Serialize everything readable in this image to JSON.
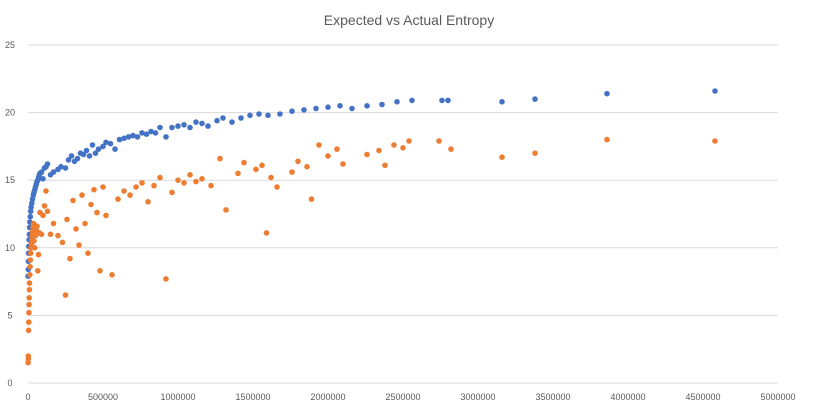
{
  "chart_data": {
    "type": "scatter",
    "title": "Expected vs Actual Entropy",
    "xlabel": "",
    "ylabel": "",
    "xlim": [
      0,
      5000000
    ],
    "ylim": [
      0,
      25
    ],
    "x_ticks": [
      "0",
      "500000",
      "1000000",
      "1500000",
      "2000000",
      "2500000",
      "3000000",
      "3500000",
      "4000000",
      "4500000",
      "5000000"
    ],
    "y_ticks": [
      "0",
      "5",
      "10",
      "15",
      "20",
      "25"
    ],
    "x_tick_values": [
      0,
      500000,
      1000000,
      1500000,
      2000000,
      2500000,
      3000000,
      3500000,
      4000000,
      4500000,
      5000000
    ],
    "y_tick_values": [
      0,
      5,
      10,
      15,
      20,
      25
    ],
    "grid": "horizontal",
    "legend": "none",
    "colors": {
      "series1": "#4472C4",
      "series2": "#ED7D31",
      "grid": "#d9d9d9",
      "tick_text": "#595959"
    },
    "series": [
      {
        "points": [
          [
            1000,
            7.9
          ],
          [
            2000,
            8.4
          ],
          [
            3000,
            9.0
          ],
          [
            4000,
            9.6
          ],
          [
            5000,
            10.1
          ],
          [
            7000,
            10.6
          ],
          [
            9000,
            11.0
          ],
          [
            11000,
            11.5
          ],
          [
            13000,
            11.9
          ],
          [
            15000,
            12.3
          ],
          [
            18000,
            12.7
          ],
          [
            21000,
            13.0
          ],
          [
            25000,
            13.3
          ],
          [
            30000,
            13.6
          ],
          [
            35000,
            13.9
          ],
          [
            40000,
            14.1
          ],
          [
            45000,
            14.3
          ],
          [
            50000,
            14.5
          ],
          [
            55000,
            14.7
          ],
          [
            60000,
            14.9
          ],
          [
            65000,
            15.0
          ],
          [
            70000,
            15.2
          ],
          [
            75000,
            15.4
          ],
          [
            80000,
            15.5
          ],
          [
            90000,
            15.6
          ],
          [
            100000,
            15.1
          ],
          [
            110000,
            15.9
          ],
          [
            120000,
            16.0
          ],
          [
            130000,
            16.2
          ],
          [
            150000,
            15.4
          ],
          [
            170000,
            15.6
          ],
          [
            200000,
            15.8
          ],
          [
            220000,
            16.0
          ],
          [
            250000,
            15.9
          ],
          [
            270000,
            16.5
          ],
          [
            290000,
            16.8
          ],
          [
            310000,
            16.4
          ],
          [
            330000,
            16.6
          ],
          [
            350000,
            17.0
          ],
          [
            370000,
            16.9
          ],
          [
            390000,
            17.2
          ],
          [
            410000,
            16.8
          ],
          [
            430000,
            17.6
          ],
          [
            450000,
            17.0
          ],
          [
            470000,
            17.3
          ],
          [
            500000,
            17.5
          ],
          [
            520000,
            17.8
          ],
          [
            550000,
            17.7
          ],
          [
            580000,
            17.3
          ],
          [
            610000,
            18.0
          ],
          [
            640000,
            18.1
          ],
          [
            670000,
            18.2
          ],
          [
            700000,
            18.3
          ],
          [
            730000,
            18.2
          ],
          [
            760000,
            18.5
          ],
          [
            790000,
            18.4
          ],
          [
            820000,
            18.6
          ],
          [
            850000,
            18.5
          ],
          [
            880000,
            18.9
          ],
          [
            920000,
            18.2
          ],
          [
            960000,
            18.9
          ],
          [
            1000000,
            19.0
          ],
          [
            1040000,
            19.1
          ],
          [
            1080000,
            18.9
          ],
          [
            1120000,
            19.3
          ],
          [
            1160000,
            19.2
          ],
          [
            1200000,
            19.0
          ],
          [
            1260000,
            19.4
          ],
          [
            1300000,
            19.6
          ],
          [
            1360000,
            19.3
          ],
          [
            1420000,
            19.6
          ],
          [
            1480000,
            19.8
          ],
          [
            1540000,
            19.9
          ],
          [
            1600000,
            19.8
          ],
          [
            1680000,
            19.9
          ],
          [
            1760000,
            20.1
          ],
          [
            1840000,
            20.2
          ],
          [
            1920000,
            20.3
          ],
          [
            2000000,
            20.4
          ],
          [
            2080000,
            20.5
          ],
          [
            2160000,
            20.3
          ],
          [
            2260000,
            20.5
          ],
          [
            2360000,
            20.6
          ],
          [
            2460000,
            20.8
          ],
          [
            2560000,
            20.9
          ],
          [
            2760000,
            20.9
          ],
          [
            2800000,
            20.9
          ],
          [
            3160000,
            20.8
          ],
          [
            3380000,
            21.0
          ],
          [
            3860000,
            21.4
          ],
          [
            4580000,
            21.6
          ]
        ]
      },
      {
        "points": [
          [
            1000,
            1.5
          ],
          [
            2000,
            2.0
          ],
          [
            3000,
            1.8
          ],
          [
            4000,
            3.9
          ],
          [
            5000,
            4.5
          ],
          [
            6000,
            5.2
          ],
          [
            7000,
            5.8
          ],
          [
            8000,
            6.3
          ],
          [
            9000,
            6.9
          ],
          [
            10000,
            7.4
          ],
          [
            12000,
            8.0
          ],
          [
            14000,
            8.6
          ],
          [
            16000,
            9.1
          ],
          [
            18000,
            9.6
          ],
          [
            20000,
            10.0
          ],
          [
            22000,
            10.3
          ],
          [
            25000,
            10.6
          ],
          [
            28000,
            10.9
          ],
          [
            31000,
            11.2
          ],
          [
            34000,
            11.5
          ],
          [
            37000,
            11.8
          ],
          [
            40000,
            10.5
          ],
          [
            45000,
            10.0
          ],
          [
            50000,
            10.9
          ],
          [
            55000,
            11.3
          ],
          [
            60000,
            11.6
          ],
          [
            65000,
            8.3
          ],
          [
            70000,
            9.5
          ],
          [
            75000,
            11.1
          ],
          [
            80000,
            12.6
          ],
          [
            90000,
            11.0
          ],
          [
            100000,
            12.4
          ],
          [
            110000,
            13.1
          ],
          [
            120000,
            14.2
          ],
          [
            130000,
            12.7
          ],
          [
            150000,
            11.0
          ],
          [
            170000,
            11.8
          ],
          [
            200000,
            10.9
          ],
          [
            230000,
            10.4
          ],
          [
            250000,
            6.5
          ],
          [
            260000,
            12.1
          ],
          [
            280000,
            9.2
          ],
          [
            300000,
            13.5
          ],
          [
            320000,
            11.4
          ],
          [
            340000,
            10.2
          ],
          [
            360000,
            13.9
          ],
          [
            380000,
            11.8
          ],
          [
            400000,
            9.6
          ],
          [
            420000,
            13.2
          ],
          [
            440000,
            14.3
          ],
          [
            460000,
            12.6
          ],
          [
            480000,
            8.3
          ],
          [
            500000,
            14.5
          ],
          [
            520000,
            12.4
          ],
          [
            560000,
            8.0
          ],
          [
            600000,
            13.6
          ],
          [
            640000,
            14.2
          ],
          [
            680000,
            13.9
          ],
          [
            720000,
            14.5
          ],
          [
            760000,
            14.8
          ],
          [
            800000,
            13.4
          ],
          [
            840000,
            14.6
          ],
          [
            880000,
            15.2
          ],
          [
            920000,
            7.7
          ],
          [
            960000,
            14.1
          ],
          [
            1000000,
            15.0
          ],
          [
            1040000,
            14.8
          ],
          [
            1080000,
            15.4
          ],
          [
            1120000,
            14.9
          ],
          [
            1160000,
            15.1
          ],
          [
            1220000,
            14.6
          ],
          [
            1280000,
            16.6
          ],
          [
            1320000,
            12.8
          ],
          [
            1400000,
            15.5
          ],
          [
            1440000,
            16.3
          ],
          [
            1520000,
            15.8
          ],
          [
            1560000,
            16.1
          ],
          [
            1590000,
            11.1
          ],
          [
            1620000,
            15.2
          ],
          [
            1660000,
            14.5
          ],
          [
            1760000,
            15.6
          ],
          [
            1800000,
            16.4
          ],
          [
            1860000,
            16.0
          ],
          [
            1890000,
            13.6
          ],
          [
            1940000,
            17.6
          ],
          [
            2000000,
            16.8
          ],
          [
            2060000,
            17.3
          ],
          [
            2100000,
            16.2
          ],
          [
            2260000,
            16.9
          ],
          [
            2340000,
            17.2
          ],
          [
            2380000,
            16.1
          ],
          [
            2440000,
            17.6
          ],
          [
            2500000,
            17.4
          ],
          [
            2540000,
            17.9
          ],
          [
            2740000,
            17.9
          ],
          [
            2820000,
            17.3
          ],
          [
            3160000,
            16.7
          ],
          [
            3380000,
            17.0
          ],
          [
            3860000,
            18.0
          ],
          [
            4580000,
            17.9
          ]
        ]
      }
    ]
  }
}
